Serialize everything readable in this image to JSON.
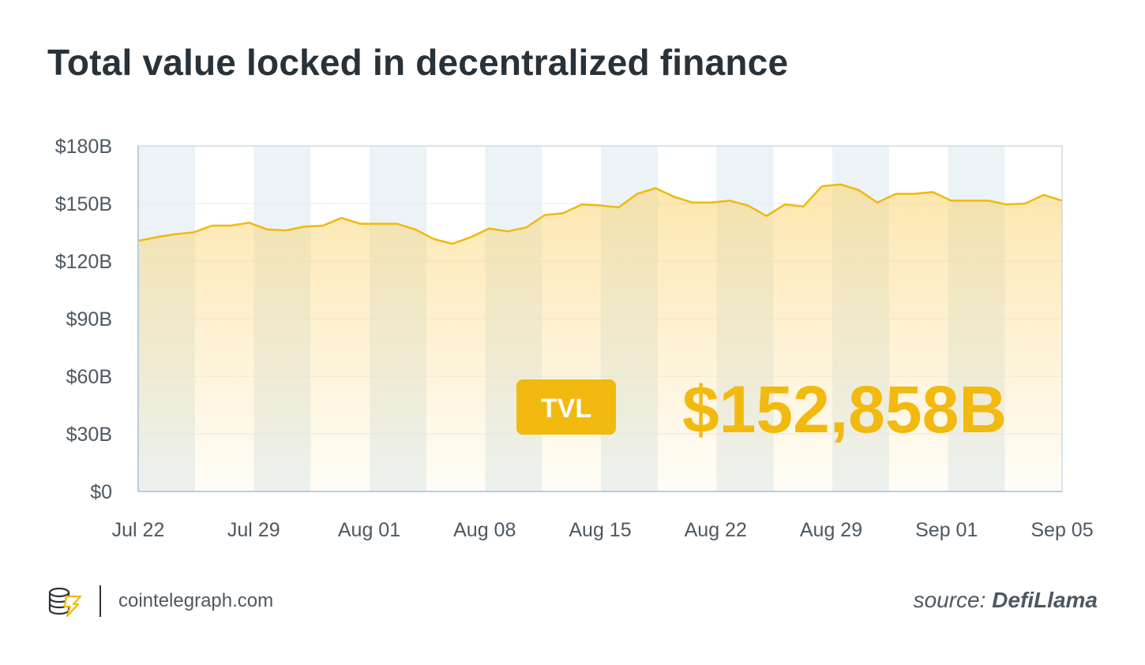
{
  "title": "Total value locked in decentralized finance",
  "callout": {
    "badge": "TVL",
    "value": "$152,858B"
  },
  "footer": {
    "site": "cointelegraph.com",
    "source_prefix": "source:",
    "source_name": "DefiLlama"
  },
  "colors": {
    "line": "#f0b90b",
    "area_top": "#fbd36b",
    "badge_bg": "#f2b90f",
    "callout_text": "#f2b90f",
    "band": "#ebf3f7",
    "axis": "#b8cdd9",
    "text": "#27323a"
  },
  "chart_data": {
    "type": "area",
    "ylim": [
      0,
      180
    ],
    "y_ticks": [
      {
        "value": 0,
        "label": "$0"
      },
      {
        "value": 30,
        "label": "$30B"
      },
      {
        "value": 60,
        "label": "$60B"
      },
      {
        "value": 90,
        "label": "$90B"
      },
      {
        "value": 120,
        "label": "$120B"
      },
      {
        "value": 150,
        "label": "$150B"
      },
      {
        "value": 180,
        "label": "$180B"
      }
    ],
    "x_ticks": [
      "Jul 22",
      "Jul 29",
      "Aug 01",
      "Aug 08",
      "Aug 15",
      "Aug 22",
      "Aug 29",
      "Sep 01",
      "Sep 05"
    ],
    "values": [
      130.5,
      132.5,
      134,
      135,
      138.5,
      138.5,
      140,
      136.5,
      136,
      138,
      138.5,
      142.5,
      139.5,
      139.5,
      139.5,
      136.5,
      131.5,
      129,
      132.5,
      137,
      135.5,
      137.5,
      144,
      145,
      149.5,
      149,
      148,
      155,
      158,
      153.5,
      150.5,
      150.5,
      151.5,
      149,
      143.5,
      149.5,
      148.5,
      159,
      160,
      157,
      150.5,
      155,
      155,
      156,
      151.5,
      151.5,
      151.5,
      149.5,
      150,
      154.5,
      151.5
    ],
    "grid": true,
    "legend": "none"
  }
}
